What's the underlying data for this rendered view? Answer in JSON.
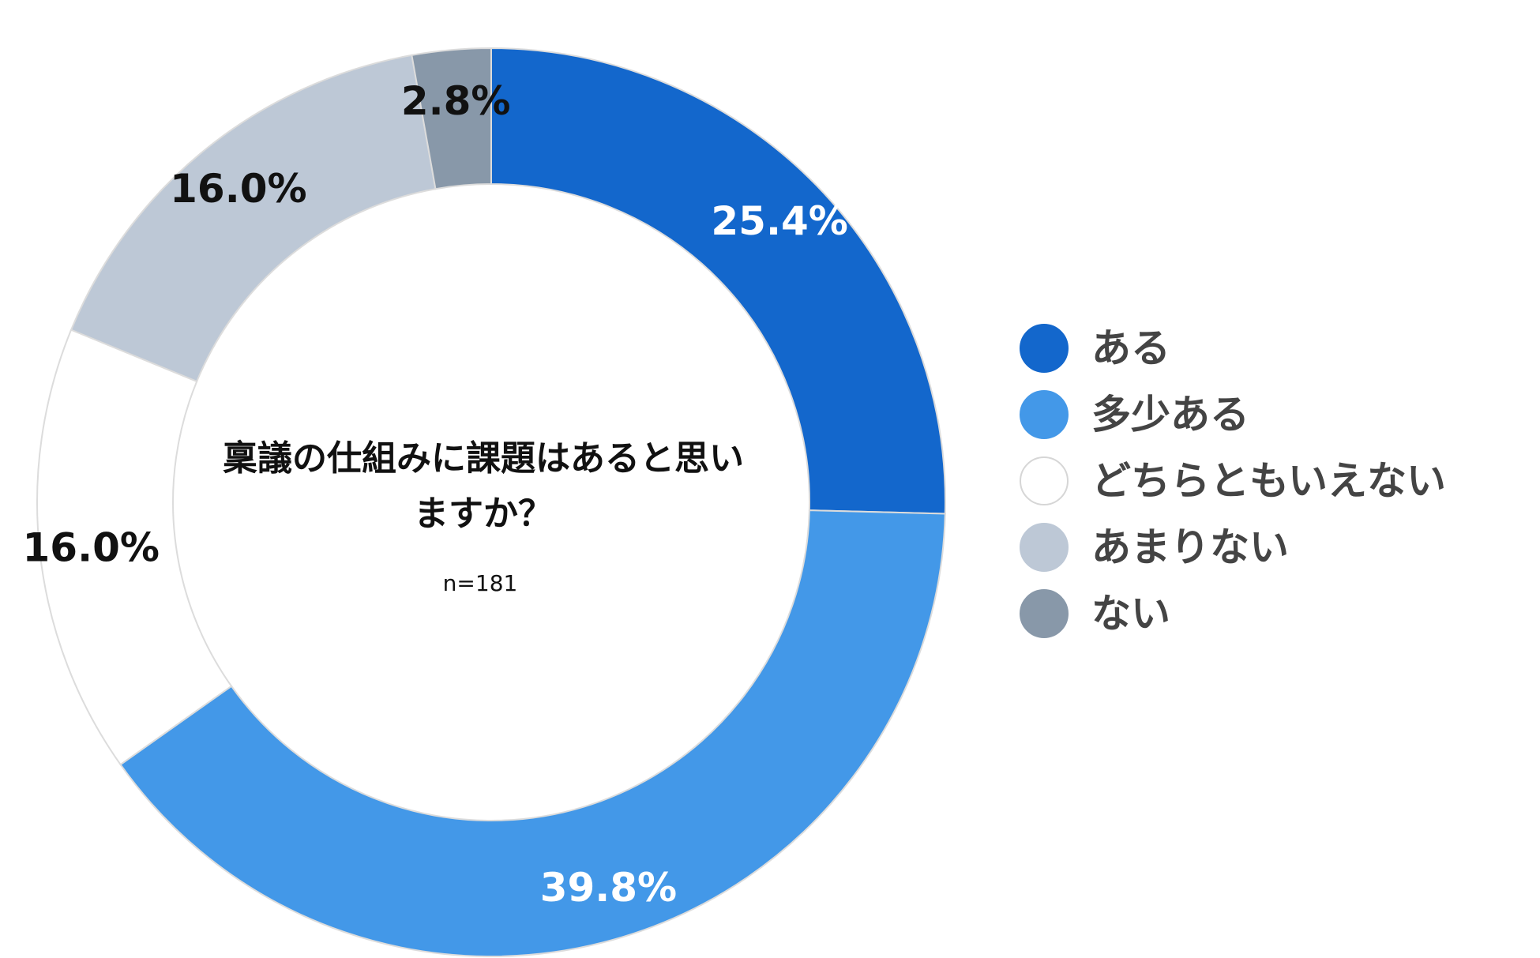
{
  "chart_data": {
    "type": "pie",
    "variant": "donut",
    "title_lines": [
      "稟議の仕組みに課題はあると思い",
      "ますか？"
    ],
    "note": "n=181",
    "legend_position": "right",
    "slices": [
      {
        "label": "ある",
        "value": 25.4,
        "display": "25.4%",
        "color": "#1367cc",
        "text_color": "#ffffff"
      },
      {
        "label": "多少ある",
        "value": 39.8,
        "display": "39.8%",
        "color": "#4398e8",
        "text_color": "#ffffff"
      },
      {
        "label": "どちらともいえない",
        "value": 16.0,
        "display": "16.0%",
        "color": "#ffffff",
        "text_color": "#111111"
      },
      {
        "label": "あまりない",
        "value": 16.0,
        "display": "16.0%",
        "color": "#bdc8d6",
        "text_color": "#111111"
      },
      {
        "label": "ない",
        "value": 2.8,
        "display": "2.8%",
        "color": "#8898a9",
        "text_color": "#111111"
      }
    ]
  }
}
